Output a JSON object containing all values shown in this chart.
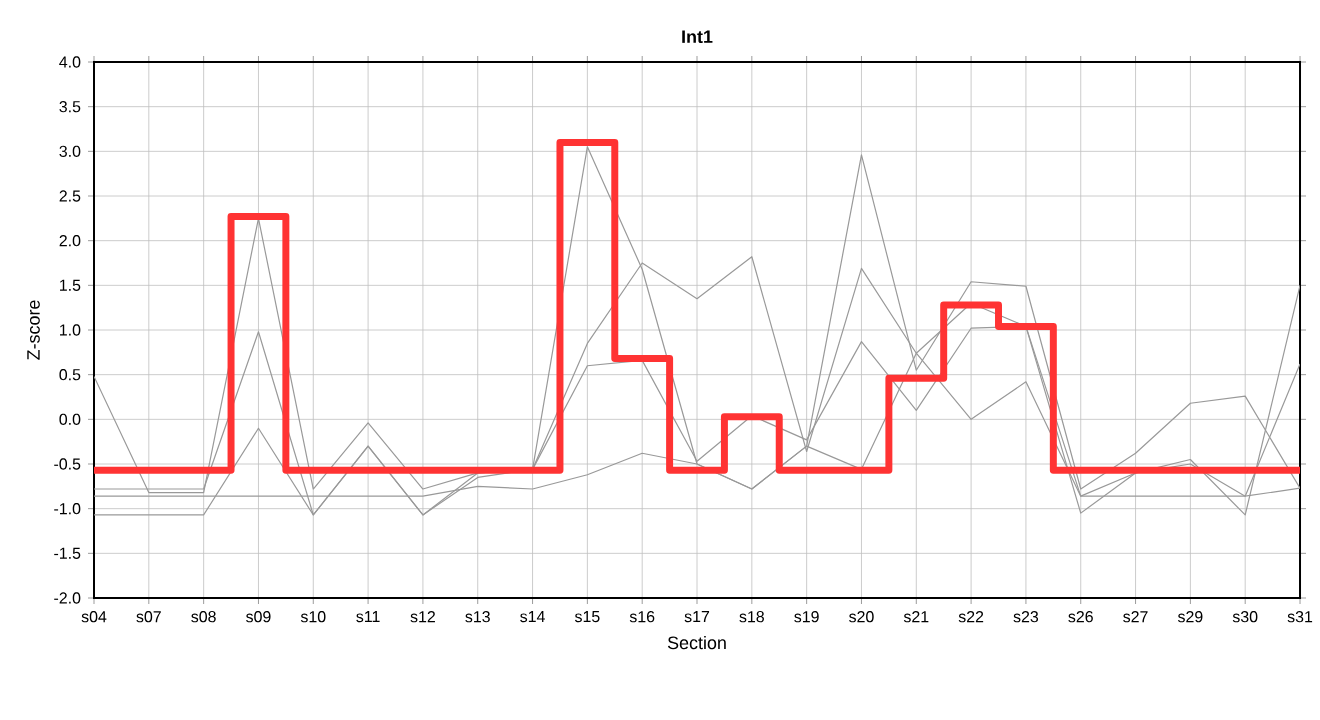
{
  "chart_data": {
    "type": "line",
    "title": "Int1",
    "xlabel": "Section",
    "ylabel": "Z-score",
    "categories": [
      "s04",
      "s07",
      "s08",
      "s09",
      "s10",
      "s11",
      "s12",
      "s13",
      "s14",
      "s15",
      "s16",
      "s17",
      "s18",
      "s19",
      "s20",
      "s21",
      "s22",
      "s23",
      "s26",
      "s27",
      "s29",
      "s30",
      "s31"
    ],
    "series": [
      {
        "color": "#999999",
        "values": [
          0.48,
          -0.82,
          -0.82,
          2.25,
          -0.78,
          -0.04,
          -0.78,
          -0.6,
          -0.56,
          3.05,
          1.68,
          -0.5,
          -0.78,
          -0.3,
          2.96,
          0.55,
          1.54,
          1.49,
          -0.78,
          -0.38,
          0.18,
          0.26,
          -0.77
        ]
      },
      {
        "color": "#999999",
        "values": [
          -0.78,
          -0.78,
          -0.78,
          0.98,
          -1.07,
          -0.3,
          -1.07,
          -0.6,
          -0.56,
          0.85,
          1.75,
          1.35,
          1.82,
          -0.36,
          1.69,
          0.74,
          1.3,
          1.04,
          -1.05,
          -0.6,
          -0.45,
          -1.07,
          1.5
        ]
      },
      {
        "color": "#999999",
        "values": [
          -1.07,
          -1.07,
          -1.07,
          -0.1,
          -1.07,
          -0.3,
          -1.07,
          -0.65,
          -0.56,
          0.6,
          0.66,
          -0.47,
          0.04,
          -0.23,
          0.87,
          0.1,
          1.02,
          1.04,
          -0.86,
          -0.6,
          -0.5,
          -0.86,
          0.62
        ]
      },
      {
        "color": "#999999",
        "values": [
          -0.86,
          -0.86,
          -0.86,
          -0.86,
          -0.86,
          -0.86,
          -0.86,
          -0.75,
          -0.78,
          -0.62,
          -0.38,
          -0.5,
          -0.78,
          -0.3,
          -0.56,
          0.74,
          0.0,
          0.42,
          -0.86,
          -0.86,
          -0.86,
          -0.86,
          -0.77
        ]
      },
      {
        "type": "step",
        "color": "#ff3333",
        "values": [
          -0.57,
          -0.57,
          -0.57,
          2.27,
          -0.57,
          -0.57,
          -0.57,
          -0.57,
          -0.57,
          3.1,
          0.68,
          -0.57,
          0.03,
          -0.57,
          -0.57,
          0.46,
          1.28,
          1.04,
          -0.57,
          -0.57,
          -0.57,
          -0.57,
          -0.57
        ]
      }
    ],
    "ylim": [
      -2,
      4
    ],
    "yticks": [
      {
        "value": -2,
        "label": "-2.0"
      },
      {
        "value": -1.5,
        "label": "-1.5"
      },
      {
        "value": -1,
        "label": "-1.0"
      },
      {
        "value": -0.5,
        "label": "-0.5"
      },
      {
        "value": 0,
        "label": "0.0"
      },
      {
        "value": 0.5,
        "label": "0.5"
      },
      {
        "value": 1,
        "label": "1.0"
      },
      {
        "value": 1.5,
        "label": "1.5"
      },
      {
        "value": 2,
        "label": "2.0"
      },
      {
        "value": 2.5,
        "label": "2.5"
      },
      {
        "value": 3,
        "label": "3.0"
      },
      {
        "value": 3.5,
        "label": "3.5"
      },
      {
        "value": 4,
        "label": "4.0"
      }
    ],
    "grid": true,
    "marker": "none"
  }
}
